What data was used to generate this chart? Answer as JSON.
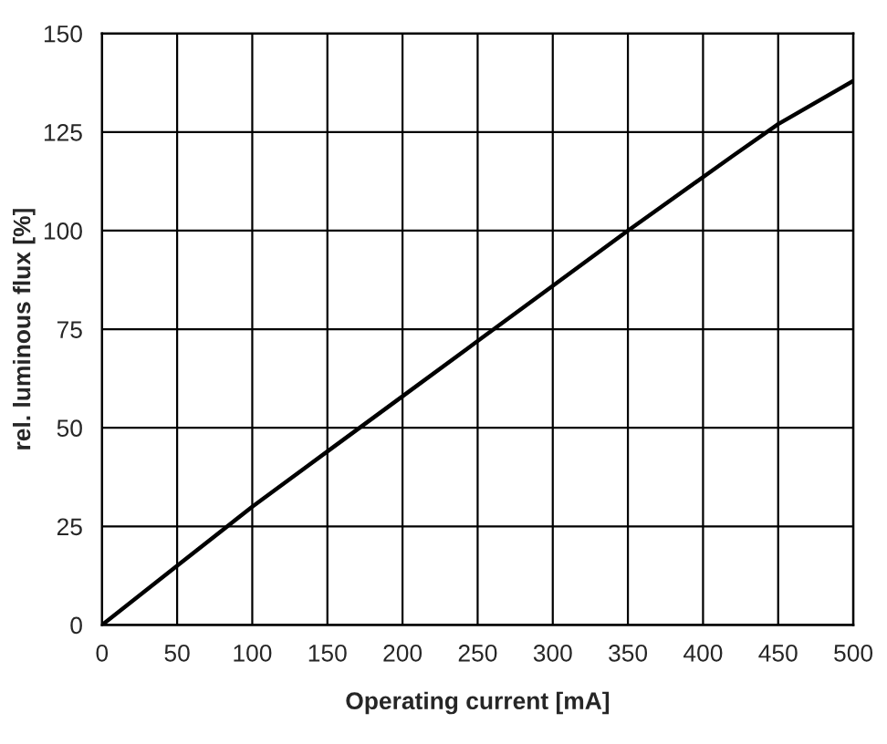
{
  "chart_data": {
    "type": "line",
    "xlabel": "Operating current [mA]",
    "ylabel": "rel. luminous flux [%]",
    "x": [
      0,
      50,
      100,
      150,
      200,
      250,
      300,
      350,
      420,
      450,
      500
    ],
    "series": [
      {
        "color": "#000000",
        "values": [
          0,
          15,
          30,
          44,
          58,
          72,
          86,
          100,
          119,
          127,
          138
        ]
      }
    ],
    "xlim": [
      0,
      500
    ],
    "ylim": [
      0,
      150
    ],
    "xticks": [
      0,
      50,
      100,
      150,
      200,
      250,
      300,
      350,
      400,
      450,
      500
    ],
    "yticks": [
      0,
      25,
      50,
      75,
      100,
      125,
      150
    ],
    "grid": true,
    "marker": "none",
    "line_style": "solid"
  }
}
